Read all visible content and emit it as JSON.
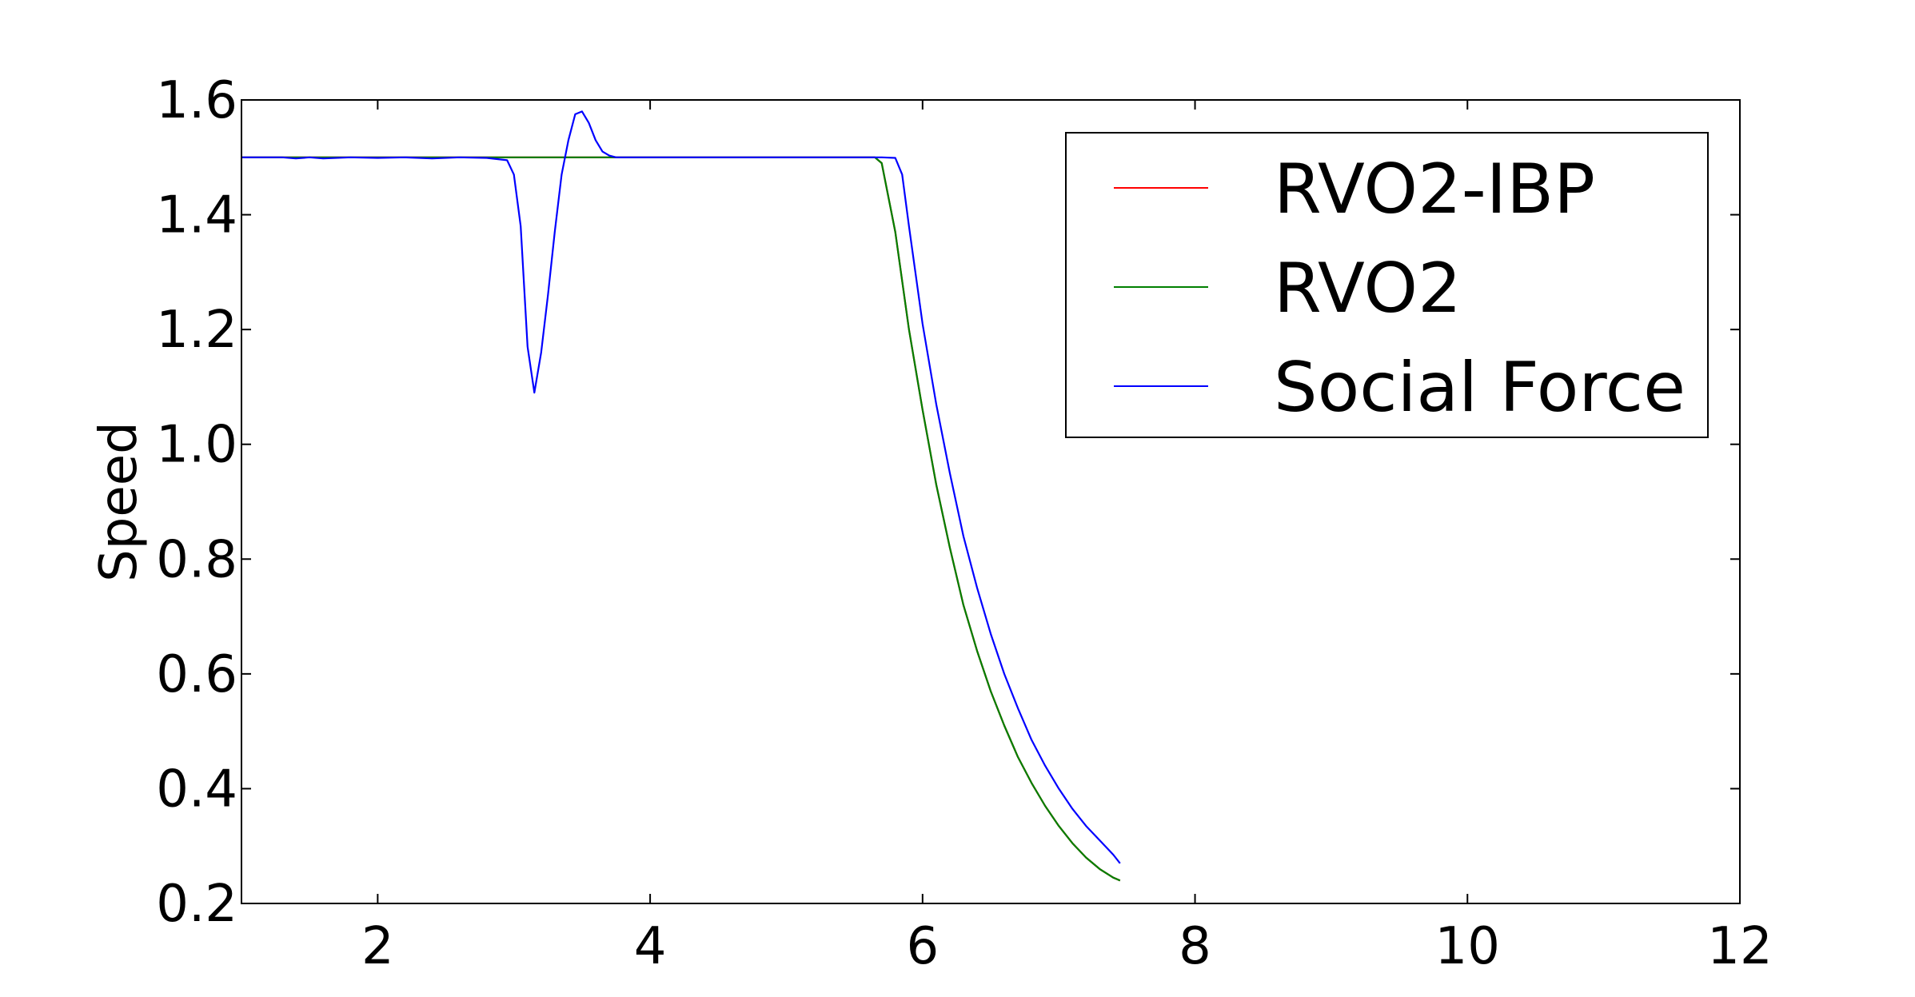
{
  "chart_data": {
    "type": "line",
    "title": "",
    "xlabel": "",
    "ylabel": "Speed",
    "xlim": [
      1,
      12
    ],
    "ylim": [
      0.2,
      1.6
    ],
    "xticks": [
      2,
      4,
      6,
      8,
      10,
      12
    ],
    "yticks": [
      0.2,
      0.4,
      0.6,
      0.8,
      1.0,
      1.2,
      1.4,
      1.6
    ],
    "xtick_labels": [
      "2",
      "4",
      "6",
      "8",
      "10",
      "12"
    ],
    "ytick_labels": [
      "0.2",
      "0.4",
      "0.6",
      "0.8",
      "1.0",
      "1.2",
      "1.4",
      "1.6"
    ],
    "grid": false,
    "legend_position": "top-right",
    "series": [
      {
        "name": "RVO2-IBP",
        "color": "#ff0000",
        "x": [
          1.0,
          5.5,
          5.65,
          5.7,
          5.8,
          5.9,
          6.0,
          6.1,
          6.2,
          6.3,
          6.4,
          6.5,
          6.6,
          6.7,
          6.8,
          6.9,
          7.0,
          7.1,
          7.2,
          7.3,
          7.4,
          7.45
        ],
        "y": [
          1.5,
          1.5,
          1.5,
          1.49,
          1.37,
          1.2,
          1.06,
          0.93,
          0.82,
          0.72,
          0.64,
          0.57,
          0.51,
          0.455,
          0.41,
          0.37,
          0.335,
          0.305,
          0.28,
          0.26,
          0.245,
          0.24
        ]
      },
      {
        "name": "RVO2",
        "color": "#008000",
        "x": [
          1.0,
          5.5,
          5.65,
          5.7,
          5.8,
          5.9,
          6.0,
          6.1,
          6.2,
          6.3,
          6.4,
          6.5,
          6.6,
          6.7,
          6.8,
          6.9,
          7.0,
          7.1,
          7.2,
          7.3,
          7.4,
          7.45
        ],
        "y": [
          1.5,
          1.5,
          1.5,
          1.49,
          1.37,
          1.2,
          1.06,
          0.93,
          0.82,
          0.72,
          0.64,
          0.57,
          0.51,
          0.455,
          0.41,
          0.37,
          0.335,
          0.305,
          0.28,
          0.26,
          0.245,
          0.24
        ]
      },
      {
        "name": "Social Force",
        "color": "#0000ff",
        "x": [
          1.0,
          1.3,
          1.4,
          1.5,
          1.6,
          1.8,
          2.0,
          2.2,
          2.4,
          2.6,
          2.8,
          2.95,
          3.0,
          3.05,
          3.1,
          3.15,
          3.2,
          3.25,
          3.3,
          3.35,
          3.4,
          3.45,
          3.5,
          3.55,
          3.6,
          3.65,
          3.7,
          3.75,
          3.8,
          4.0,
          4.5,
          5.0,
          5.5,
          5.7,
          5.8,
          5.85,
          5.9,
          6.0,
          6.1,
          6.2,
          6.3,
          6.4,
          6.5,
          6.6,
          6.7,
          6.8,
          6.9,
          7.0,
          7.1,
          7.2,
          7.3,
          7.4,
          7.45
        ],
        "y": [
          1.5,
          1.5,
          1.498,
          1.5,
          1.498,
          1.5,
          1.499,
          1.5,
          1.498,
          1.5,
          1.499,
          1.495,
          1.47,
          1.38,
          1.17,
          1.09,
          1.16,
          1.26,
          1.37,
          1.47,
          1.53,
          1.575,
          1.58,
          1.56,
          1.53,
          1.51,
          1.503,
          1.5,
          1.5,
          1.5,
          1.5,
          1.5,
          1.5,
          1.5,
          1.499,
          1.47,
          1.38,
          1.21,
          1.07,
          0.95,
          0.84,
          0.75,
          0.67,
          0.6,
          0.54,
          0.485,
          0.44,
          0.4,
          0.365,
          0.335,
          0.31,
          0.285,
          0.27
        ]
      }
    ]
  }
}
